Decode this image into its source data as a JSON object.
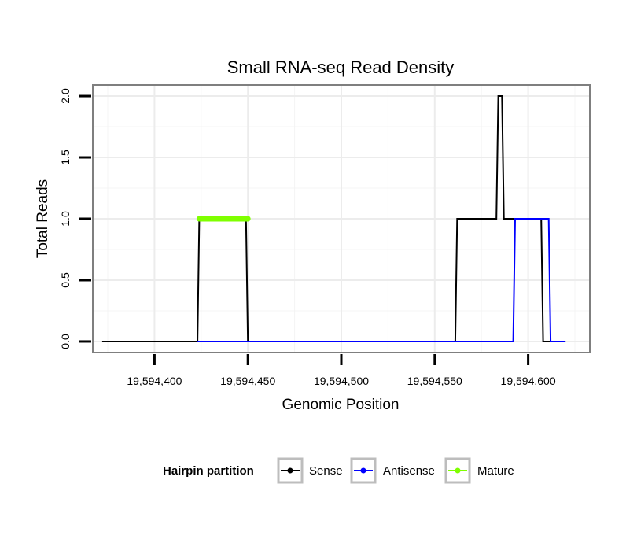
{
  "chart_data": {
    "type": "line",
    "title": "Small RNA-seq Read Density",
    "xlabel": "Genomic Position",
    "ylabel": "Total Reads",
    "xlim": [
      19594367,
      19594633
    ],
    "ylim": [
      -0.09,
      2.09
    ],
    "x_ticks": [
      19594400,
      19594450,
      19594500,
      19594550,
      19594600
    ],
    "x_tick_labels": [
      "19,594,400",
      "19,594,450",
      "19,594,500",
      "19,594,550",
      "19,594,600"
    ],
    "y_ticks": [
      0,
      0.5,
      1,
      1.5,
      2
    ],
    "y_tick_labels": [
      "0.0",
      "0.5",
      "1.0",
      "1.5",
      "2.0"
    ],
    "grid": true,
    "legend": {
      "title": "Hairpin partition",
      "position": "bottom",
      "entries": [
        "Sense",
        "Antisense",
        "Mature"
      ]
    },
    "series": [
      {
        "name": "Sense",
        "color": "#000000",
        "x": [
          19594372,
          19594423,
          19594424,
          19594449,
          19594450,
          19594561,
          19594562,
          19594583,
          19594584,
          19594586,
          19594587,
          19594607,
          19594608,
          19594620
        ],
        "y": [
          0,
          0,
          1,
          1,
          0,
          0,
          1,
          1,
          2,
          2,
          1,
          1,
          0,
          0
        ]
      },
      {
        "name": "Antisense",
        "color": "#0000ff",
        "x": [
          19594423,
          19594450,
          19594592,
          19594593,
          19594611,
          19594612,
          19594620
        ],
        "y": [
          0,
          0,
          0,
          1,
          1,
          0,
          0
        ]
      },
      {
        "name": "Mature",
        "color": "#7fff00",
        "x": [
          19594424,
          19594450
        ],
        "y": [
          1,
          1
        ]
      }
    ]
  }
}
